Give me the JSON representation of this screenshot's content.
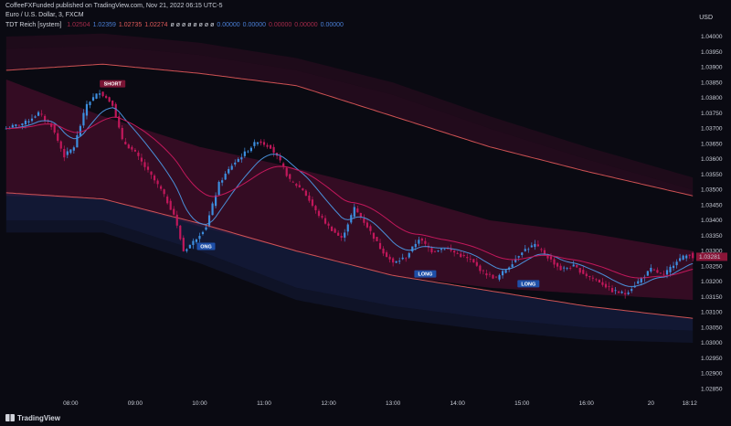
{
  "header": {
    "publisher_line": "CoffeeFXFunded published on TradingView.com, Nov 21, 2022 06:15 UTC-5",
    "symbol_line": "Euro / U.S. Dollar, 3, FXCM",
    "indicator_name": "TDT Reich [system]",
    "indicator_values": [
      {
        "text": "1.02504",
        "color": "#a52a4a"
      },
      {
        "text": "1.02359",
        "color": "#4a7fd6"
      },
      {
        "text": "1.02735",
        "color": "#e05a5a"
      },
      {
        "text": "1.02274",
        "color": "#e05a5a"
      },
      {
        "text": "ø ø ø ø ø ø ø ø",
        "color": "#d1d4dc"
      },
      {
        "text": "0.00000",
        "color": "#4a7fd6"
      },
      {
        "text": "0.00000",
        "color": "#4a7fd6"
      },
      {
        "text": "0.00000",
        "color": "#a52a4a"
      },
      {
        "text": "0.00000",
        "color": "#a52a4a"
      },
      {
        "text": "0.00000",
        "color": "#4a7fd6"
      }
    ]
  },
  "currency": "USD",
  "footer": {
    "brand": "TradingView"
  },
  "colors": {
    "background": "#0a0a12",
    "bull": "#3d8fe0",
    "bear": "#c2185b",
    "band_red": "#e25a5a",
    "band_fill": "#7a1040",
    "ema_blue": "#4a90d9",
    "ema_red": "#c2185b"
  },
  "chart_data": {
    "type": "candlestick",
    "y_ticks": [
      "1.04000",
      "1.03950",
      "1.03900",
      "1.03850",
      "1.03800",
      "1.03750",
      "1.03700",
      "1.03650",
      "1.03600",
      "1.03550",
      "1.03500",
      "1.03450",
      "1.03400",
      "1.03350",
      "1.03300",
      "1.03250",
      "1.03200",
      "1.03150",
      "1.03100",
      "1.03050",
      "1.03000",
      "1.02950",
      "1.02900",
      "1.02850"
    ],
    "ylim": [
      1.0283,
      1.0403
    ],
    "x_ticks": [
      {
        "label": "08:00",
        "bar": 20
      },
      {
        "label": "09:00",
        "bar": 40
      },
      {
        "label": "10:00",
        "bar": 60
      },
      {
        "label": "11:00",
        "bar": 80
      },
      {
        "label": "12:00",
        "bar": 100
      },
      {
        "label": "13:00",
        "bar": 120
      },
      {
        "label": "14:00",
        "bar": 140
      },
      {
        "label": "15:00",
        "bar": 160
      },
      {
        "label": "16:00",
        "bar": 180
      },
      {
        "label": "20",
        "bar": 200
      },
      {
        "label": "18:12",
        "bar": 212
      }
    ],
    "n_bars": 214,
    "key_closes": [
      [
        0,
        1.037
      ],
      [
        6,
        1.0372
      ],
      [
        10,
        1.0375
      ],
      [
        14,
        1.0371
      ],
      [
        18,
        1.0361
      ],
      [
        21,
        1.0364
      ],
      [
        25,
        1.0378
      ],
      [
        29,
        1.0382
      ],
      [
        33,
        1.0378
      ],
      [
        36,
        1.0366
      ],
      [
        40,
        1.0362
      ],
      [
        44,
        1.0356
      ],
      [
        48,
        1.035
      ],
      [
        52,
        1.0342
      ],
      [
        55,
        1.033
      ],
      [
        58,
        1.0333
      ],
      [
        62,
        1.0338
      ],
      [
        66,
        1.0352
      ],
      [
        70,
        1.0358
      ],
      [
        74,
        1.0362
      ],
      [
        78,
        1.0366
      ],
      [
        82,
        1.0364
      ],
      [
        85,
        1.0359
      ],
      [
        88,
        1.0353
      ],
      [
        92,
        1.035
      ],
      [
        96,
        1.0343
      ],
      [
        100,
        1.0338
      ],
      [
        104,
        1.0334
      ],
      [
        108,
        1.0344
      ],
      [
        112,
        1.0338
      ],
      [
        116,
        1.0331
      ],
      [
        120,
        1.0326
      ],
      [
        124,
        1.0328
      ],
      [
        128,
        1.0334
      ],
      [
        132,
        1.033
      ],
      [
        136,
        1.0331
      ],
      [
        140,
        1.0329
      ],
      [
        144,
        1.0327
      ],
      [
        148,
        1.0323
      ],
      [
        152,
        1.0321
      ],
      [
        156,
        1.0325
      ],
      [
        160,
        1.033
      ],
      [
        164,
        1.0332
      ],
      [
        168,
        1.0328
      ],
      [
        172,
        1.0324
      ],
      [
        176,
        1.0325
      ],
      [
        180,
        1.0322
      ],
      [
        184,
        1.032
      ],
      [
        188,
        1.0317
      ],
      [
        192,
        1.0316
      ],
      [
        196,
        1.032
      ],
      [
        200,
        1.0324
      ],
      [
        204,
        1.0322
      ],
      [
        208,
        1.0327
      ],
      [
        212,
        1.0329
      ],
      [
        213,
        1.0328
      ]
    ],
    "bands": {
      "upper_outer": [
        [
          0,
          1.0396
        ],
        [
          30,
          1.0397
        ],
        [
          60,
          1.0394
        ],
        [
          90,
          1.0389
        ],
        [
          120,
          1.0381
        ],
        [
          150,
          1.037
        ],
        [
          180,
          1.036
        ],
        [
          213,
          1.035
        ]
      ],
      "upper_inner": [
        [
          0,
          1.0389
        ],
        [
          30,
          1.0391
        ],
        [
          60,
          1.0388
        ],
        [
          90,
          1.0384
        ],
        [
          120,
          1.0374
        ],
        [
          150,
          1.0364
        ],
        [
          180,
          1.0356
        ],
        [
          213,
          1.0348
        ]
      ],
      "cloud_top": [
        [
          0,
          1.0386
        ],
        [
          30,
          1.0374
        ],
        [
          60,
          1.0364
        ],
        [
          90,
          1.0357
        ],
        [
          120,
          1.0349
        ],
        [
          150,
          1.034
        ],
        [
          180,
          1.0336
        ],
        [
          213,
          1.033
        ]
      ],
      "cloud_bottom": [
        [
          0,
          1.0348
        ],
        [
          30,
          1.0347
        ],
        [
          60,
          1.0338
        ],
        [
          90,
          1.033
        ],
        [
          120,
          1.0322
        ],
        [
          150,
          1.0318
        ],
        [
          180,
          1.0316
        ],
        [
          213,
          1.0314
        ]
      ],
      "lower_inner": [
        [
          0,
          1.0349
        ],
        [
          30,
          1.0347
        ],
        [
          60,
          1.0339
        ],
        [
          90,
          1.033
        ],
        [
          120,
          1.0322
        ],
        [
          150,
          1.0317
        ],
        [
          180,
          1.0312
        ],
        [
          213,
          1.0308
        ]
      ],
      "lower_outer": [
        [
          0,
          1.034
        ],
        [
          30,
          1.034
        ],
        [
          60,
          1.033
        ],
        [
          90,
          1.0318
        ],
        [
          120,
          1.0312
        ],
        [
          150,
          1.0308
        ],
        [
          180,
          1.0305
        ],
        [
          213,
          1.0304
        ]
      ]
    },
    "signals": [
      {
        "label": "SHORT",
        "bar": 33,
        "price": 1.03846,
        "type": "short"
      },
      {
        "label": "ONG",
        "bar": 62,
        "price": 1.03315,
        "type": "long"
      },
      {
        "label": "LONG",
        "bar": 130,
        "price": 1.03225,
        "type": "long"
      },
      {
        "label": "LONG",
        "bar": 162,
        "price": 1.03193,
        "type": "long"
      }
    ],
    "last_price": {
      "price": 1.03281,
      "label": "1.03281"
    }
  }
}
